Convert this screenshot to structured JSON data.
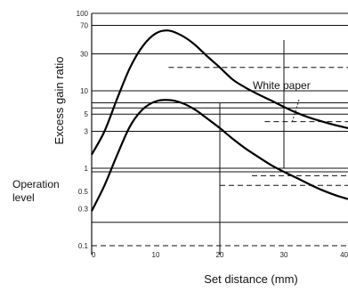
{
  "chart_data": {
    "type": "line",
    "xlabel": "Set distance (mm)",
    "ylabel": "Excess gain ratio",
    "y_scale": "log",
    "x_range": [
      0,
      40
    ],
    "y_range": [
      0.1,
      100
    ],
    "x_ticks": [
      "0",
      "10",
      "20",
      "30",
      "40"
    ],
    "y_ticks": [
      "100",
      "70",
      "30",
      "10",
      "5",
      "3",
      "1",
      "0.5",
      "0.3",
      "0.1"
    ],
    "annotations": {
      "operation_level": "Operation\nlevel",
      "white_paper": "White paper"
    },
    "operation_level_value": 1,
    "series": [
      {
        "name": "White paper",
        "x": [
          0,
          2,
          4,
          6,
          8,
          10,
          12,
          14,
          16,
          18,
          20,
          22,
          24,
          26,
          28,
          30,
          32,
          34,
          36,
          38,
          40
        ],
        "y": [
          1.5,
          3,
          8,
          20,
          38,
          55,
          60,
          52,
          40,
          28,
          20,
          14,
          11,
          9,
          7.5,
          6.2,
          5.2,
          4.5,
          4,
          3.6,
          3.3
        ]
      },
      {
        "name": "",
        "x": [
          0,
          2,
          4,
          6,
          8,
          10,
          12,
          14,
          16,
          18,
          20,
          22,
          24,
          26,
          28,
          30,
          32,
          34,
          36,
          38,
          40
        ],
        "y": [
          0.28,
          0.6,
          1.5,
          3.5,
          5.8,
          7.3,
          7.6,
          7,
          5.8,
          4.4,
          3.3,
          2.4,
          1.8,
          1.4,
          1.1,
          0.9,
          0.75,
          0.62,
          0.52,
          0.45,
          0.4
        ]
      }
    ]
  }
}
